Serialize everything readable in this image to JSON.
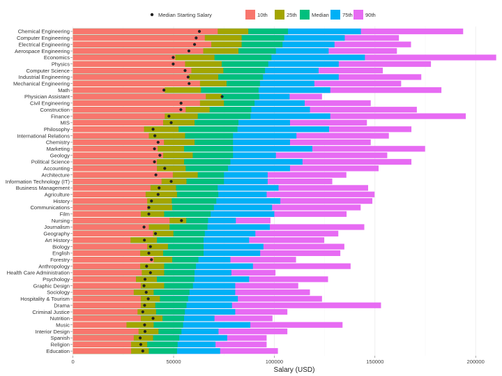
{
  "chart_data": {
    "type": "bar",
    "orientation": "horizontal",
    "title": "",
    "xlabel": "Salary (USD)",
    "ylabel": "",
    "xlim": [
      0,
      215000
    ],
    "xticks": [
      0,
      50000,
      100000,
      150000,
      200000
    ],
    "xtick_labels": [
      "0",
      "50000",
      "100000",
      "150000",
      "200000"
    ],
    "grid": true,
    "legend": {
      "placement": "top",
      "point_label": "Median Starting Salary",
      "bar_labels": [
        "10th",
        "25th",
        "Median",
        "75th",
        "90th"
      ]
    },
    "colors": {
      "10th": "#F8766D",
      "25th": "#A3A500",
      "Median": "#00BF7D",
      "75th": "#00B0F6",
      "90th": "#E76BF3",
      "point": "#222222"
    },
    "categories": [
      "Chemical Engineering",
      "Computer Engineering",
      "Electrical Engineering",
      "Aerospace Engineering",
      "Economics",
      "Physics",
      "Computer Science",
      "Industrial Engineering",
      "Mechanical Engineering",
      "Math",
      "Physician Assistant",
      "Civil Engineering",
      "Construction",
      "Finance",
      "MIS",
      "Philosophy",
      "International Relations",
      "Chemistry",
      "Marketing",
      "Geology",
      "Political Science",
      "Accounting",
      "Architecture",
      "Information Technology (IT)",
      "Business Management",
      "Agriculture",
      "History",
      "Communications",
      "Film",
      "Nursing",
      "Journalism",
      "Geography",
      "Art History",
      "Biology",
      "English",
      "Forestry",
      "Anthropology",
      "Health Care Administration",
      "Psychology",
      "Graphic Design",
      "Sociology",
      "Hospitality & Tourism",
      "Drama",
      "Criminal Justice",
      "Nutrition",
      "Music",
      "Interior Design",
      "Spanish",
      "Religion",
      "Education"
    ],
    "series": [
      {
        "name": "10th",
        "values": [
          71900,
          65500,
          68700,
          64700,
          50900,
          55700,
          58800,
          57600,
          63100,
          45600,
          66000,
          63100,
          56000,
          45600,
          44800,
          35300,
          37700,
          45200,
          42100,
          44800,
          41700,
          41700,
          49600,
          44000,
          38500,
          36100,
          36900,
          36900,
          33700,
          48000,
          37700,
          39800,
          28600,
          36900,
          33400,
          40100,
          33400,
          34200,
          31300,
          33700,
          30200,
          33700,
          33700,
          32100,
          33700,
          26600,
          32600,
          30200,
          28900,
          28900
        ]
      },
      {
        "name": "25th",
        "values": [
          87100,
          83800,
          83800,
          82200,
          70300,
          73900,
          74700,
          72200,
          76300,
          63600,
          73800,
          75000,
          67900,
          62000,
          60400,
          52500,
          55700,
          60400,
          55200,
          59500,
          55200,
          56000,
          62000,
          56400,
          51200,
          51700,
          49100,
          49300,
          45300,
          56300,
          48000,
          49900,
          41700,
          47200,
          44800,
          49300,
          45300,
          45300,
          41700,
          45300,
          40100,
          43200,
          40900,
          41300,
          44500,
          40100,
          42500,
          39800,
          36900,
          37700
        ]
      },
      {
        "name": "Median",
        "values": [
          106800,
          104900,
          104100,
          100800,
          98600,
          97000,
          95400,
          94400,
          92900,
          92200,
          92500,
          90200,
          88600,
          88200,
          82200,
          81700,
          79500,
          79500,
          79500,
          79500,
          78200,
          77000,
          75000,
          75000,
          71900,
          72200,
          71200,
          70000,
          68400,
          67100,
          66800,
          65500,
          64900,
          64900,
          64900,
          62300,
          61100,
          60400,
          60300,
          59600,
          57900,
          57200,
          56400,
          55600,
          55200,
          54700,
          53900,
          52800,
          52000,
          51700
        ]
      },
      {
        "name": "75th",
        "values": [
          143000,
          135000,
          129900,
          127000,
          145000,
          132000,
          122000,
          132000,
          119900,
          127800,
          107600,
          115100,
          117700,
          127800,
          107800,
          127200,
          111000,
          107800,
          118900,
          100800,
          114000,
          107800,
          96700,
          96700,
          102100,
          96200,
          103000,
          98900,
          100000,
          80900,
          97800,
          90600,
          87500,
          94600,
          93000,
          78200,
          89400,
          78700,
          87500,
          80600,
          80600,
          81900,
          79000,
          80600,
          70300,
          88100,
          72300,
          76600,
          70800,
          73100
        ]
      },
      {
        "name": "90th",
        "values": [
          193800,
          161900,
          167900,
          160900,
          210200,
          177800,
          153900,
          173000,
          163000,
          183000,
          123700,
          147900,
          170800,
          195100,
          146000,
          168100,
          156900,
          147900,
          174900,
          156100,
          168100,
          151800,
          135800,
          128800,
          146600,
          149800,
          148700,
          142900,
          135900,
          98100,
          144700,
          131800,
          124800,
          134800,
          132800,
          110800,
          137900,
          100600,
          126700,
          111900,
          117700,
          123700,
          153000,
          106500,
          99100,
          133900,
          106500,
          96200,
          96200,
          101800
        ]
      }
    ],
    "points": {
      "name": "Median Starting Salary",
      "values": [
        62800,
        61200,
        60400,
        57600,
        49800,
        49800,
        55700,
        57200,
        57700,
        45200,
        74100,
        53700,
        53600,
        47700,
        48800,
        39800,
        40700,
        42300,
        40500,
        43200,
        40500,
        45600,
        41200,
        48800,
        42800,
        42300,
        39000,
        37700,
        37700,
        53900,
        35300,
        41000,
        35500,
        38500,
        37700,
        39000,
        36600,
        38500,
        35800,
        35300,
        36400,
        37400,
        35600,
        34700,
        39800,
        35600,
        35800,
        33400,
        33700,
        34700
      ]
    }
  }
}
